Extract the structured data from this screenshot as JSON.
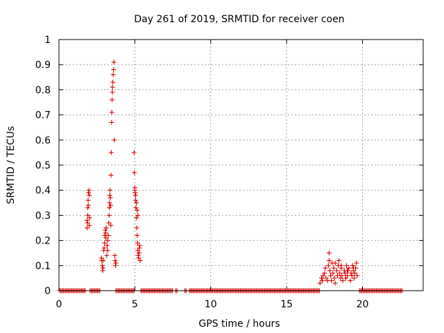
{
  "chart_data": {
    "type": "scatter",
    "title": "Day 261 of 2019, SRMTID for receiver coen",
    "xlabel": "GPS time / hours",
    "ylabel": "SRMTID / TECUs",
    "xlim": [
      0,
      24
    ],
    "ylim": [
      0,
      1
    ],
    "xticks": [
      "0",
      "5",
      "10",
      "15",
      "20"
    ],
    "yticks": [
      "0",
      "0.1",
      "0.2",
      "0.3",
      "0.4",
      "0.5",
      "0.6",
      "0.7",
      "0.8",
      "0.9",
      "1"
    ],
    "grid": true,
    "marker": "+",
    "color": "#dd0000",
    "series": [
      {
        "name": "SRMTID",
        "x": [
          1.85,
          1.85,
          1.88,
          1.9,
          1.9,
          1.92,
          1.93,
          1.95,
          1.98,
          2.0,
          2.0,
          2.02,
          2.8,
          2.82,
          2.85,
          2.88,
          2.9,
          2.92,
          2.95,
          2.97,
          3.0,
          3.02,
          3.05,
          3.07,
          3.1,
          3.12,
          3.15,
          3.17,
          3.2,
          3.22,
          3.25,
          3.28,
          3.3,
          3.32,
          3.33,
          3.35,
          3.37,
          3.38,
          3.4,
          3.42,
          3.43,
          3.45,
          3.47,
          3.48,
          3.5,
          3.52,
          3.53,
          3.55,
          3.57,
          3.6,
          3.62,
          3.65,
          3.68,
          3.7,
          3.72,
          3.75,
          4.95,
          4.97,
          5.0,
          5.02,
          5.05,
          5.07,
          5.1,
          5.12,
          5.15,
          5.18,
          5.2,
          5.22,
          5.25,
          5.28,
          5.3,
          5.32,
          5.35,
          5.0,
          5.05,
          5.1,
          5.15,
          5.2,
          17.2,
          17.3,
          17.35,
          17.4,
          17.5,
          17.55,
          17.6,
          17.7,
          17.75,
          17.8,
          17.85,
          17.9,
          17.95,
          18.0,
          18.05,
          18.1,
          18.15,
          18.2,
          18.3,
          18.35,
          18.4,
          18.45,
          18.5,
          18.55,
          18.6,
          18.65,
          18.7,
          18.8,
          18.85,
          18.9,
          18.95,
          19.0,
          19.05,
          19.1,
          19.2,
          19.25,
          19.3,
          19.35,
          19.4,
          19.45,
          19.5,
          19.55,
          19.6,
          19.65,
          17.8,
          18.2,
          18.6,
          19.0,
          19.4
        ],
        "y": [
          0.25,
          0.28,
          0.27,
          0.3,
          0.33,
          0.36,
          0.34,
          0.39,
          0.4,
          0.38,
          0.26,
          0.29,
          0.13,
          0.12,
          0.1,
          0.08,
          0.09,
          0.12,
          0.16,
          0.17,
          0.19,
          0.22,
          0.24,
          0.23,
          0.21,
          0.25,
          0.14,
          0.18,
          0.16,
          0.2,
          0.22,
          0.27,
          0.3,
          0.33,
          0.35,
          0.38,
          0.4,
          0.37,
          0.34,
          0.26,
          0.46,
          0.55,
          0.67,
          0.71,
          0.76,
          0.79,
          0.81,
          0.83,
          0.86,
          0.88,
          0.91,
          0.6,
          0.14,
          0.12,
          0.1,
          0.11,
          0.55,
          0.47,
          0.41,
          0.39,
          0.36,
          0.33,
          0.29,
          0.25,
          0.22,
          0.19,
          0.16,
          0.14,
          0.13,
          0.15,
          0.17,
          0.18,
          0.12,
          0.4,
          0.38,
          0.35,
          0.32,
          0.3,
          0.03,
          0.05,
          0.04,
          0.06,
          0.07,
          0.09,
          0.05,
          0.04,
          0.1,
          0.15,
          0.08,
          0.06,
          0.04,
          0.11,
          0.07,
          0.09,
          0.05,
          0.03,
          0.08,
          0.06,
          0.1,
          0.12,
          0.07,
          0.05,
          0.09,
          0.06,
          0.04,
          0.08,
          0.07,
          0.05,
          0.1,
          0.06,
          0.08,
          0.09,
          0.04,
          0.07,
          0.06,
          0.1,
          0.08,
          0.05,
          0.07,
          0.09,
          0.11,
          0.06,
          0.12,
          0.11,
          0.1,
          0.08,
          0.09
        ]
      }
    ],
    "zero_segments": [
      [
        0.05,
        1.8
      ],
      [
        2.05,
        2.75
      ],
      [
        3.75,
        5.0
      ],
      [
        5.4,
        7.5
      ],
      [
        7.7,
        7.8
      ],
      [
        8.3,
        8.4
      ],
      [
        8.6,
        17.2
      ],
      [
        19.8,
        22.6
      ]
    ]
  }
}
